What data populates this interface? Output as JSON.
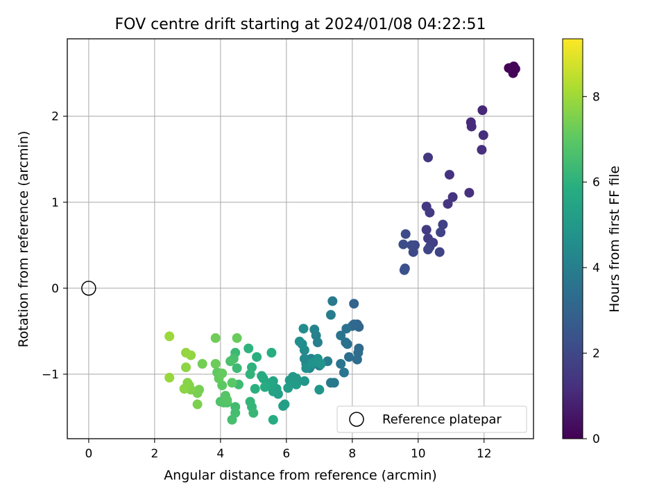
{
  "chart_data": {
    "type": "scatter",
    "title": "FOV centre drift starting at 2024/01/08 04:22:51",
    "xlabel": "Angular distance from reference (arcmin)",
    "ylabel": "Rotation from reference (arcmin)",
    "xlim": [
      -0.65,
      13.5
    ],
    "ylim": [
      -1.75,
      2.9
    ],
    "xticks": [
      0,
      2,
      4,
      6,
      8,
      10,
      12
    ],
    "yticks": [
      -1,
      0,
      1,
      2
    ],
    "grid": true,
    "colormap": "viridis",
    "colorbar": {
      "label": "Hours from first FF file",
      "range": [
        0,
        9.35
      ],
      "ticks": [
        0,
        2,
        4,
        6,
        8
      ]
    },
    "legend": {
      "position": "lower-right",
      "entries": [
        "Reference platepar"
      ]
    },
    "reference_point": {
      "x": 0,
      "y": 0
    },
    "points": [
      [
        12.75,
        2.56,
        0.02
      ],
      [
        12.9,
        2.58,
        0.05
      ],
      [
        12.88,
        2.5,
        0.08
      ],
      [
        12.95,
        2.55,
        0.1
      ],
      [
        11.95,
        2.07,
        1.0
      ],
      [
        11.6,
        1.93,
        1.05
      ],
      [
        11.62,
        1.88,
        1.1
      ],
      [
        11.98,
        1.78,
        1.15
      ],
      [
        11.93,
        1.61,
        1.2
      ],
      [
        11.55,
        1.11,
        1.25
      ],
      [
        10.95,
        1.32,
        1.3
      ],
      [
        11.05,
        1.06,
        1.35
      ],
      [
        10.9,
        0.98,
        1.4
      ],
      [
        10.3,
        1.52,
        1.45
      ],
      [
        10.25,
        0.95,
        1.5
      ],
      [
        10.35,
        0.88,
        1.55
      ],
      [
        10.25,
        0.68,
        1.6
      ],
      [
        10.3,
        0.58,
        1.65
      ],
      [
        10.35,
        0.48,
        1.7
      ],
      [
        10.45,
        0.53,
        1.75
      ],
      [
        10.75,
        0.74,
        1.8
      ],
      [
        10.68,
        0.65,
        1.85
      ],
      [
        10.65,
        0.42,
        1.9
      ],
      [
        10.3,
        0.45,
        1.95
      ],
      [
        9.9,
        0.5,
        2.0
      ],
      [
        9.85,
        0.42,
        2.05
      ],
      [
        9.8,
        0.5,
        2.1
      ],
      [
        9.62,
        0.63,
        2.15
      ],
      [
        9.55,
        0.51,
        2.2
      ],
      [
        9.6,
        0.23,
        2.25
      ],
      [
        9.58,
        0.21,
        2.3
      ],
      [
        8.05,
        -0.18,
        3.0
      ],
      [
        8.2,
        -0.45,
        3.05
      ],
      [
        8.15,
        -0.42,
        3.1
      ],
      [
        8.05,
        -0.42,
        3.15
      ],
      [
        8.0,
        -0.44,
        3.2
      ],
      [
        8.2,
        -0.7,
        3.25
      ],
      [
        8.18,
        -0.75,
        3.3
      ],
      [
        8.15,
        -0.83,
        3.35
      ],
      [
        7.9,
        -0.8,
        3.4
      ],
      [
        7.85,
        -0.65,
        3.45
      ],
      [
        7.8,
        -0.63,
        3.5
      ],
      [
        7.82,
        -0.47,
        3.55
      ],
      [
        7.65,
        -0.55,
        3.6
      ],
      [
        7.65,
        -0.88,
        3.65
      ],
      [
        7.75,
        -0.98,
        3.7
      ],
      [
        7.45,
        -1.1,
        3.75
      ],
      [
        7.35,
        -1.1,
        3.8
      ],
      [
        7.4,
        -0.15,
        3.85
      ],
      [
        7.35,
        -0.31,
        3.9
      ],
      [
        7.25,
        -0.85,
        3.95
      ],
      [
        7.0,
        -0.9,
        4.0
      ],
      [
        6.95,
        -0.63,
        4.05
      ],
      [
        6.9,
        -0.55,
        4.1
      ],
      [
        6.85,
        -0.48,
        4.15
      ],
      [
        6.75,
        -0.82,
        4.2
      ],
      [
        6.7,
        -0.93,
        4.25
      ],
      [
        6.75,
        -0.9,
        4.3
      ],
      [
        6.6,
        -0.88,
        4.35
      ],
      [
        6.55,
        -0.82,
        4.4
      ],
      [
        6.55,
        -0.72,
        4.45
      ],
      [
        6.52,
        -0.47,
        4.5
      ],
      [
        6.48,
        -0.65,
        4.55
      ],
      [
        6.4,
        -0.62,
        4.6
      ],
      [
        6.6,
        -0.93,
        4.65
      ],
      [
        6.8,
        -0.87,
        4.7
      ],
      [
        6.95,
        -0.82,
        4.75
      ],
      [
        7.05,
        -0.88,
        4.8
      ],
      [
        7.0,
        -1.18,
        4.85
      ],
      [
        6.55,
        -1.08,
        4.9
      ],
      [
        6.3,
        -1.05,
        4.95
      ],
      [
        6.2,
        -1.03,
        5.0
      ],
      [
        6.1,
        -1.07,
        5.05
      ],
      [
        6.3,
        -1.12,
        5.1
      ],
      [
        6.05,
        -1.16,
        5.15
      ],
      [
        5.9,
        -1.37,
        5.2
      ],
      [
        5.95,
        -1.35,
        5.25
      ],
      [
        5.75,
        -1.23,
        5.3
      ],
      [
        5.7,
        -1.17,
        5.35
      ],
      [
        5.6,
        -1.2,
        5.4
      ],
      [
        5.6,
        -1.08,
        5.45
      ],
      [
        5.55,
        -1.12,
        5.5
      ],
      [
        5.45,
        -1.12,
        5.55
      ],
      [
        5.4,
        -1.1,
        5.6
      ],
      [
        5.3,
        -1.05,
        5.65
      ],
      [
        5.25,
        -1.02,
        5.7
      ],
      [
        5.35,
        -1.15,
        5.75
      ],
      [
        5.6,
        -1.53,
        5.8
      ],
      [
        5.55,
        -0.75,
        5.85
      ],
      [
        5.1,
        -0.8,
        5.9
      ],
      [
        5.05,
        -1.17,
        5.95
      ],
      [
        4.95,
        -0.92,
        6.0
      ],
      [
        4.85,
        -0.7,
        6.05
      ],
      [
        4.9,
        -1.0,
        6.1
      ],
      [
        4.9,
        -1.32,
        6.15
      ],
      [
        4.95,
        -1.38,
        6.2
      ],
      [
        5.0,
        -1.45,
        6.25
      ],
      [
        4.45,
        -0.75,
        6.3
      ],
      [
        4.5,
        -0.93,
        6.35
      ],
      [
        4.55,
        -1.12,
        6.4
      ],
      [
        4.45,
        -1.38,
        6.45
      ],
      [
        4.45,
        -1.45,
        6.5
      ],
      [
        4.35,
        -1.53,
        6.55
      ],
      [
        4.4,
        -0.82,
        6.6
      ],
      [
        4.3,
        -0.85,
        6.65
      ],
      [
        4.2,
        -1.33,
        6.7
      ],
      [
        4.0,
        -1.32,
        6.75
      ],
      [
        4.1,
        -1.33,
        6.8
      ],
      [
        4.15,
        -1.25,
        6.85
      ],
      [
        4.2,
        -1.3,
        6.9
      ],
      [
        4.35,
        -1.1,
        6.95
      ],
      [
        4.05,
        -1.13,
        7.0
      ],
      [
        3.9,
        -0.98,
        7.05
      ],
      [
        3.95,
        -1.05,
        7.1
      ],
      [
        4.05,
        -0.99,
        7.15
      ],
      [
        4.5,
        -0.58,
        7.2
      ],
      [
        3.85,
        -0.88,
        7.25
      ],
      [
        3.85,
        -0.58,
        7.3
      ],
      [
        3.45,
        -0.88,
        7.35
      ],
      [
        3.35,
        -1.18,
        7.4
      ],
      [
        3.3,
        -1.22,
        7.45
      ],
      [
        3.3,
        -1.35,
        7.5
      ],
      [
        3.1,
        -1.18,
        7.55
      ],
      [
        3.05,
        -1.13,
        7.6
      ],
      [
        3.0,
        -1.1,
        7.65
      ],
      [
        2.9,
        -1.17,
        7.7
      ],
      [
        2.95,
        -0.92,
        7.75
      ],
      [
        3.1,
        -0.78,
        7.8
      ],
      [
        2.95,
        -0.75,
        7.85
      ],
      [
        2.45,
        -1.04,
        7.9
      ],
      [
        2.45,
        -0.56,
        7.95
      ]
    ]
  }
}
